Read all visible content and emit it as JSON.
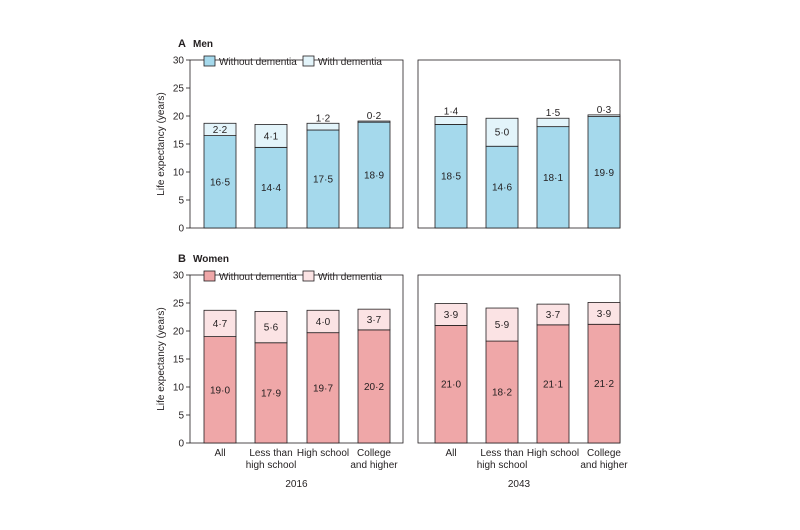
{
  "colors": {
    "men_without": "#a5d9ec",
    "men_with": "#e3f4fa",
    "women_without": "#efa7a8",
    "women_with": "#fbe3e4",
    "stroke": "#231f20"
  },
  "chart_data": [
    {
      "type": "bar",
      "stacked": true,
      "panel_letter": "A",
      "panel_title": "Men",
      "ylabel": "Life expectancy (years)",
      "ylim": [
        0,
        30
      ],
      "yticks": [
        "0",
        "5",
        "10",
        "15",
        "20",
        "25",
        "30"
      ],
      "legend": [
        "Without dementia",
        "With dementia"
      ],
      "groups": [
        {
          "label": "2016",
          "categories": [
            "All",
            "Less than high school",
            "High school",
            "College and higher"
          ],
          "series": [
            {
              "name": "Without dementia",
              "values": [
                16.5,
                14.4,
                17.5,
                18.9
              ],
              "labels": [
                "16·5",
                "14·4",
                "17·5",
                "18·9"
              ]
            },
            {
              "name": "With dementia",
              "values": [
                2.2,
                4.1,
                1.2,
                0.2
              ],
              "labels": [
                "2·2",
                "4·1",
                "1·2",
                "0·2"
              ]
            }
          ]
        },
        {
          "label": "2043",
          "categories": [
            "All",
            "Less than high school",
            "High school",
            "College and higher"
          ],
          "series": [
            {
              "name": "Without dementia",
              "values": [
                18.5,
                14.6,
                18.1,
                19.9
              ],
              "labels": [
                "18·5",
                "14·6",
                "18·1",
                "19·9"
              ]
            },
            {
              "name": "With dementia",
              "values": [
                1.4,
                5.0,
                1.5,
                0.3
              ],
              "labels": [
                "1·4",
                "5·0",
                "1·5",
                "0·3"
              ]
            }
          ]
        }
      ]
    },
    {
      "type": "bar",
      "stacked": true,
      "panel_letter": "B",
      "panel_title": "Women",
      "ylabel": "Life expectancy (years)",
      "ylim": [
        0,
        30
      ],
      "yticks": [
        "0",
        "5",
        "10",
        "15",
        "20",
        "25",
        "30"
      ],
      "legend": [
        "Without dementia",
        "With dementia"
      ],
      "groups": [
        {
          "label": "2016",
          "categories": [
            "All",
            "Less than high school",
            "High school",
            "College and higher"
          ],
          "category_lines": [
            [
              "All"
            ],
            [
              "Less than",
              "high school"
            ],
            [
              "High school"
            ],
            [
              "College",
              "and higher"
            ]
          ],
          "series": [
            {
              "name": "Without dementia",
              "values": [
                19.0,
                17.9,
                19.7,
                20.2
              ],
              "labels": [
                "19·0",
                "17·9",
                "19·7",
                "20·2"
              ]
            },
            {
              "name": "With dementia",
              "values": [
                4.7,
                5.6,
                4.0,
                3.7
              ],
              "labels": [
                "4·7",
                "5·6",
                "4·0",
                "3·7"
              ]
            }
          ]
        },
        {
          "label": "2043",
          "categories": [
            "All",
            "Less than high school",
            "High school",
            "College and higher"
          ],
          "category_lines": [
            [
              "All"
            ],
            [
              "Less than",
              "high school"
            ],
            [
              "High school"
            ],
            [
              "College",
              "and higher"
            ]
          ],
          "series": [
            {
              "name": "Without dementia",
              "values": [
                21.0,
                18.2,
                21.1,
                21.2
              ],
              "labels": [
                "21·0",
                "18·2",
                "21·1",
                "21·2"
              ]
            },
            {
              "name": "With dementia",
              "values": [
                3.9,
                5.9,
                3.7,
                3.9
              ],
              "labels": [
                "3·9",
                "5·9",
                "3·7",
                "3·9"
              ]
            }
          ]
        }
      ]
    }
  ]
}
